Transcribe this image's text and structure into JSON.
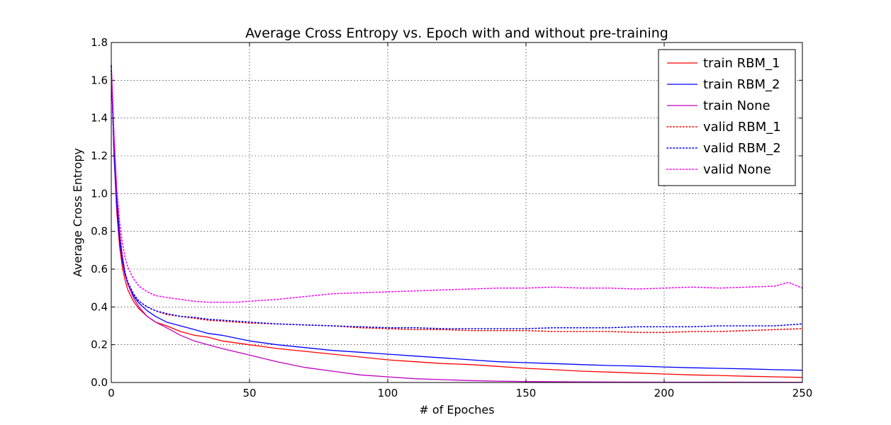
{
  "chart_data": {
    "type": "line",
    "title": "Average Cross Entropy vs. Epoch with and without pre-training",
    "xlabel": "# of Epoches",
    "ylabel": "Average Cross Entropy",
    "xlim": [
      0,
      250
    ],
    "ylim": [
      0,
      1.8
    ],
    "x_ticks": [
      0,
      50,
      100,
      150,
      200,
      250
    ],
    "y_ticks": [
      0.0,
      0.2,
      0.4,
      0.6,
      0.8,
      1.0,
      1.2,
      1.4,
      1.6,
      1.8
    ],
    "x_tick_labels": [
      "0",
      "50",
      "100",
      "150",
      "200",
      "250"
    ],
    "y_tick_labels": [
      "0.0",
      "0.2",
      "0.4",
      "0.6",
      "0.8",
      "1.0",
      "1.2",
      "1.4",
      "1.6",
      "1.8"
    ],
    "grid": true,
    "legend_position": "top-right",
    "series": [
      {
        "name": "train RBM_1",
        "color": "#ff0000",
        "style": "solid",
        "points": [
          [
            0,
            1.68
          ],
          [
            1,
            1.2
          ],
          [
            2,
            0.9
          ],
          [
            3,
            0.72
          ],
          [
            4,
            0.61
          ],
          [
            5,
            0.54
          ],
          [
            6,
            0.49
          ],
          [
            8,
            0.43
          ],
          [
            10,
            0.39
          ],
          [
            13,
            0.35
          ],
          [
            16,
            0.32
          ],
          [
            20,
            0.3
          ],
          [
            25,
            0.27
          ],
          [
            30,
            0.25
          ],
          [
            35,
            0.24
          ],
          [
            40,
            0.22
          ],
          [
            50,
            0.2
          ],
          [
            60,
            0.18
          ],
          [
            70,
            0.165
          ],
          [
            80,
            0.15
          ],
          [
            90,
            0.135
          ],
          [
            100,
            0.12
          ],
          [
            110,
            0.11
          ],
          [
            120,
            0.1
          ],
          [
            130,
            0.095
          ],
          [
            140,
            0.085
          ],
          [
            150,
            0.075
          ],
          [
            160,
            0.068
          ],
          [
            170,
            0.06
          ],
          [
            180,
            0.055
          ],
          [
            190,
            0.05
          ],
          [
            200,
            0.045
          ],
          [
            210,
            0.04
          ],
          [
            220,
            0.037
          ],
          [
            230,
            0.033
          ],
          [
            240,
            0.03
          ],
          [
            250,
            0.027
          ]
        ]
      },
      {
        "name": "train RBM_2",
        "color": "#0000ff",
        "style": "solid",
        "points": [
          [
            0,
            1.68
          ],
          [
            1,
            1.2
          ],
          [
            2,
            0.93
          ],
          [
            3,
            0.75
          ],
          [
            4,
            0.64
          ],
          [
            5,
            0.57
          ],
          [
            6,
            0.52
          ],
          [
            8,
            0.46
          ],
          [
            10,
            0.42
          ],
          [
            13,
            0.38
          ],
          [
            16,
            0.35
          ],
          [
            20,
            0.32
          ],
          [
            25,
            0.3
          ],
          [
            30,
            0.28
          ],
          [
            35,
            0.26
          ],
          [
            40,
            0.25
          ],
          [
            50,
            0.22
          ],
          [
            60,
            0.2
          ],
          [
            70,
            0.185
          ],
          [
            80,
            0.17
          ],
          [
            90,
            0.16
          ],
          [
            100,
            0.15
          ],
          [
            110,
            0.14
          ],
          [
            120,
            0.13
          ],
          [
            130,
            0.12
          ],
          [
            140,
            0.11
          ],
          [
            150,
            0.105
          ],
          [
            160,
            0.1
          ],
          [
            170,
            0.095
          ],
          [
            180,
            0.09
          ],
          [
            190,
            0.087
          ],
          [
            200,
            0.082
          ],
          [
            210,
            0.078
          ],
          [
            220,
            0.075
          ],
          [
            230,
            0.072
          ],
          [
            240,
            0.068
          ],
          [
            250,
            0.065
          ]
        ]
      },
      {
        "name": "train None",
        "color": "#bf00bf",
        "style": "solid",
        "points": [
          [
            0,
            1.68
          ],
          [
            1,
            1.3
          ],
          [
            2,
            1.0
          ],
          [
            3,
            0.8
          ],
          [
            4,
            0.67
          ],
          [
            5,
            0.58
          ],
          [
            6,
            0.52
          ],
          [
            8,
            0.45
          ],
          [
            10,
            0.4
          ],
          [
            13,
            0.35
          ],
          [
            16,
            0.32
          ],
          [
            20,
            0.29
          ],
          [
            25,
            0.25
          ],
          [
            30,
            0.22
          ],
          [
            35,
            0.2
          ],
          [
            40,
            0.18
          ],
          [
            50,
            0.145
          ],
          [
            60,
            0.11
          ],
          [
            70,
            0.08
          ],
          [
            80,
            0.06
          ],
          [
            90,
            0.04
          ],
          [
            100,
            0.03
          ],
          [
            110,
            0.02
          ],
          [
            120,
            0.015
          ],
          [
            130,
            0.01
          ],
          [
            140,
            0.007
          ],
          [
            150,
            0.005
          ],
          [
            170,
            0.003
          ],
          [
            200,
            0.002
          ],
          [
            250,
            0.001
          ]
        ]
      },
      {
        "name": "valid RBM_1",
        "color": "#ff0000",
        "style": "dotted",
        "points": [
          [
            0,
            1.65
          ],
          [
            1,
            1.25
          ],
          [
            2,
            0.95
          ],
          [
            3,
            0.77
          ],
          [
            4,
            0.66
          ],
          [
            5,
            0.58
          ],
          [
            6,
            0.53
          ],
          [
            8,
            0.47
          ],
          [
            10,
            0.43
          ],
          [
            13,
            0.4
          ],
          [
            16,
            0.38
          ],
          [
            20,
            0.36
          ],
          [
            25,
            0.35
          ],
          [
            30,
            0.34
          ],
          [
            35,
            0.33
          ],
          [
            40,
            0.325
          ],
          [
            50,
            0.315
          ],
          [
            60,
            0.31
          ],
          [
            70,
            0.305
          ],
          [
            80,
            0.3
          ],
          [
            90,
            0.29
          ],
          [
            100,
            0.285
          ],
          [
            110,
            0.28
          ],
          [
            120,
            0.28
          ],
          [
            130,
            0.275
          ],
          [
            140,
            0.275
          ],
          [
            150,
            0.275
          ],
          [
            160,
            0.27
          ],
          [
            170,
            0.27
          ],
          [
            180,
            0.27
          ],
          [
            190,
            0.265
          ],
          [
            200,
            0.265
          ],
          [
            210,
            0.27
          ],
          [
            220,
            0.27
          ],
          [
            230,
            0.275
          ],
          [
            240,
            0.28
          ],
          [
            250,
            0.285
          ]
        ]
      },
      {
        "name": "valid RBM_2",
        "color": "#0000ff",
        "style": "dotted",
        "points": [
          [
            0,
            1.65
          ],
          [
            1,
            1.25
          ],
          [
            2,
            0.95
          ],
          [
            3,
            0.77
          ],
          [
            4,
            0.66
          ],
          [
            5,
            0.58
          ],
          [
            6,
            0.53
          ],
          [
            8,
            0.47
          ],
          [
            10,
            0.43
          ],
          [
            13,
            0.4
          ],
          [
            16,
            0.38
          ],
          [
            20,
            0.365
          ],
          [
            25,
            0.35
          ],
          [
            30,
            0.345
          ],
          [
            35,
            0.335
          ],
          [
            40,
            0.33
          ],
          [
            50,
            0.32
          ],
          [
            60,
            0.31
          ],
          [
            70,
            0.305
          ],
          [
            80,
            0.3
          ],
          [
            90,
            0.295
          ],
          [
            100,
            0.29
          ],
          [
            110,
            0.29
          ],
          [
            120,
            0.285
          ],
          [
            130,
            0.285
          ],
          [
            140,
            0.285
          ],
          [
            150,
            0.285
          ],
          [
            160,
            0.29
          ],
          [
            170,
            0.29
          ],
          [
            180,
            0.29
          ],
          [
            190,
            0.295
          ],
          [
            200,
            0.295
          ],
          [
            210,
            0.295
          ],
          [
            220,
            0.3
          ],
          [
            230,
            0.3
          ],
          [
            240,
            0.3
          ],
          [
            250,
            0.31
          ]
        ]
      },
      {
        "name": "valid None",
        "color": "#ff00ff",
        "style": "dotted",
        "points": [
          [
            0,
            1.68
          ],
          [
            1,
            1.3
          ],
          [
            2,
            1.02
          ],
          [
            3,
            0.85
          ],
          [
            4,
            0.74
          ],
          [
            5,
            0.66
          ],
          [
            6,
            0.61
          ],
          [
            8,
            0.55
          ],
          [
            10,
            0.51
          ],
          [
            13,
            0.48
          ],
          [
            16,
            0.46
          ],
          [
            20,
            0.45
          ],
          [
            25,
            0.44
          ],
          [
            30,
            0.43
          ],
          [
            35,
            0.425
          ],
          [
            40,
            0.425
          ],
          [
            45,
            0.425
          ],
          [
            50,
            0.43
          ],
          [
            60,
            0.44
          ],
          [
            70,
            0.455
          ],
          [
            80,
            0.47
          ],
          [
            90,
            0.475
          ],
          [
            100,
            0.48
          ],
          [
            110,
            0.485
          ],
          [
            120,
            0.49
          ],
          [
            130,
            0.495
          ],
          [
            140,
            0.5
          ],
          [
            150,
            0.5
          ],
          [
            160,
            0.505
          ],
          [
            170,
            0.5
          ],
          [
            180,
            0.5
          ],
          [
            190,
            0.495
          ],
          [
            200,
            0.5
          ],
          [
            210,
            0.505
          ],
          [
            220,
            0.5
          ],
          [
            230,
            0.505
          ],
          [
            240,
            0.51
          ],
          [
            245,
            0.53
          ],
          [
            250,
            0.5
          ]
        ]
      }
    ]
  }
}
